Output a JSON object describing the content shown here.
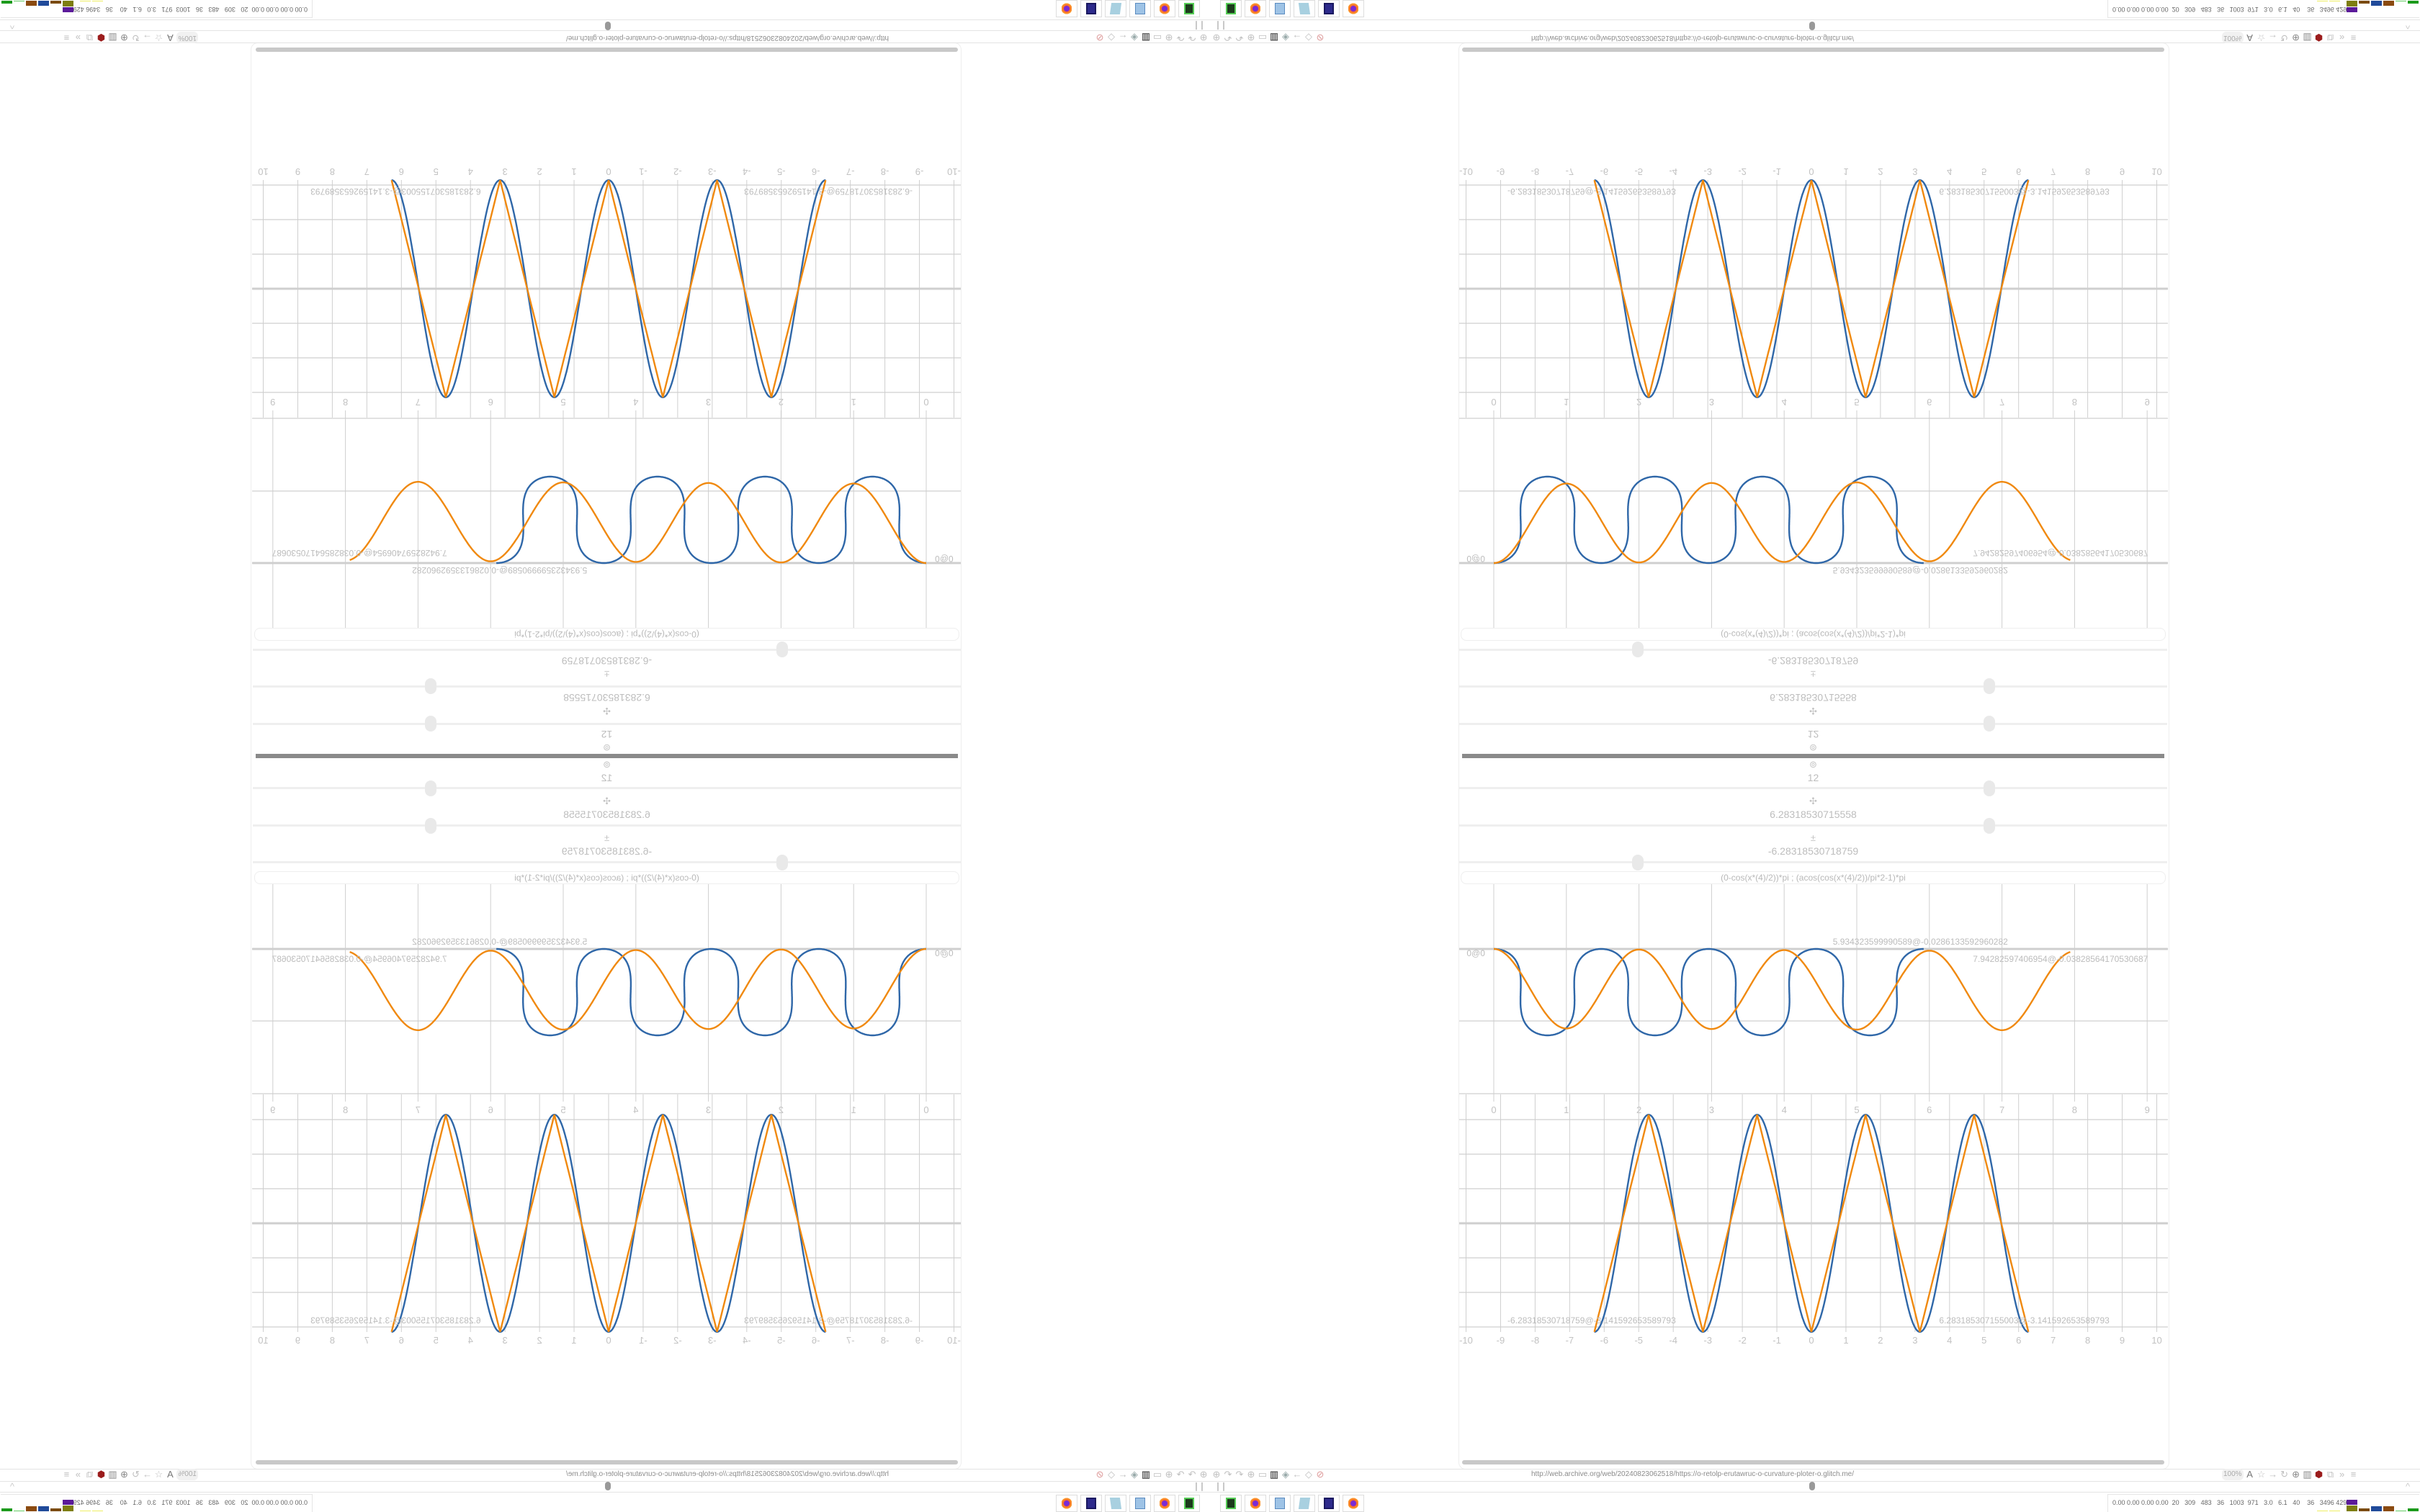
{
  "controls": {
    "target_icon": "target-icon",
    "segments_value": "12",
    "range_end_icon": "plus-icon",
    "range_end_value": "6.28318530715558",
    "range_start_icon": "plus-minus-icon",
    "range_start_value": "-6.28318530718759",
    "slider_segments_fraction": 0.74,
    "slider_range_end_fraction": 0.74,
    "slider_range_start_fraction": 0.25,
    "formula": "(0-cos(x*(4)/2))*pi ; (acos(cos(x*(4)/2))/pi*2-1)*pi"
  },
  "chart_data": [
    {
      "type": "line",
      "title": "",
      "xlabel": "",
      "ylabel": "",
      "xlim": [
        0,
        9
      ],
      "x_ticks": [
        "0",
        "1",
        "2",
        "3",
        "4",
        "5",
        "6",
        "7",
        "8",
        "9"
      ],
      "grid": true,
      "series": [
        {
          "color": "#2f67a8",
          "end_label": "5.934323599990589@-0.0286133592960282"
        },
        {
          "color": "#f0890f",
          "end_label": "7.94282597406954@-0.03828564170530687"
        }
      ],
      "start_label": "0@0"
    },
    {
      "type": "line",
      "title": "",
      "xlabel": "",
      "ylabel": "",
      "xlim": [
        -10,
        10
      ],
      "ylim": [
        -3.2,
        3.2
      ],
      "x_ticks": [
        "-10",
        "-9",
        "-8",
        "-7",
        "-6",
        "-5",
        "-4",
        "-3",
        "-2",
        "-1",
        "0",
        "1",
        "2",
        "3",
        "4",
        "5",
        "6",
        "7",
        "8",
        "9",
        "10"
      ],
      "grid": true,
      "x_range": [
        -6.28318530718759,
        6.283185307155003
      ],
      "series": [
        {
          "formula": "(0-cos(x*(4)/2))*pi",
          "color": "#2f67a8"
        },
        {
          "formula": "(acos(cos(x*(4)/2))/pi*2-1)*pi",
          "color": "#f0890f"
        }
      ],
      "start_label": "-6.28318530718759@-3.141592653589793",
      "end_label": "6.283185307155003@-3.141592653589793"
    }
  ],
  "browser": {
    "url": "http://web.archive.org/web/20240823062518/https://o-retolp-erutawruc-o-curvature-ploter-o.glitch.me/",
    "zoom": "100%",
    "left_icons": [
      "globe-icon",
      "arc-icon",
      "arc-icon",
      "globe-icon",
      "folder-icon",
      "trash-icon",
      "shield-icon",
      "back-arrow-icon",
      "shield-outline-icon",
      "lock-crossed-icon"
    ],
    "right_icons": [
      "translate-icon",
      "star-icon",
      "forward-arrow-icon",
      "reload-icon",
      "globe-icon",
      "trash-icon",
      "ublock-icon",
      "extension-icon",
      "overflow-icon",
      "menu-icon"
    ]
  },
  "taskbar": {
    "apps": [
      "terminal",
      "firefox",
      "calculator",
      "notepad",
      "floppy-64",
      "firefox"
    ],
    "stats": "0.00 0.00 0.00 0.00  20   309   483   36   1003  971   3.0   6.1   40    36   3496 4298"
  }
}
